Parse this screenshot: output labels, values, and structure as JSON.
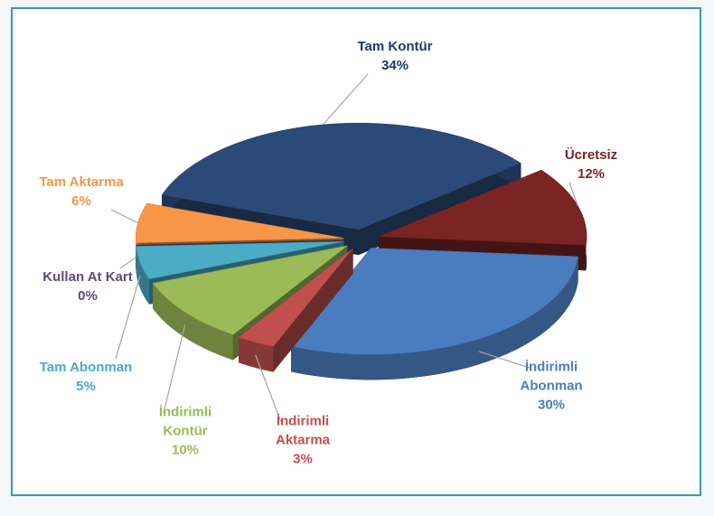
{
  "chart_data": {
    "type": "pie3d",
    "categories": [
      "Tam Kontür",
      "Ücretsiz",
      "İndirimli Abonman",
      "İndirimli Aktarma",
      "İndirimli Kontür",
      "Tam Abonman",
      "Kullan At Kart",
      "Tam Aktarma"
    ],
    "values": [
      34,
      12,
      30,
      3,
      10,
      5,
      0,
      6
    ],
    "value_labels": [
      "34%",
      "12%",
      "30%",
      "3%",
      "10%",
      "5%",
      "0%",
      "6%"
    ],
    "colors": [
      "#2b4a78",
      "#7a2424",
      "#4a7cc0",
      "#c0504d",
      "#9bbb59",
      "#4bacc6",
      "#604a7b",
      "#f79646"
    ],
    "label_colors": [
      "#1f3864",
      "#7a2424",
      "#4a7cc0",
      "#c0504d",
      "#9bbb59",
      "#4bacc6",
      "#604a7b",
      "#f79646"
    ]
  }
}
